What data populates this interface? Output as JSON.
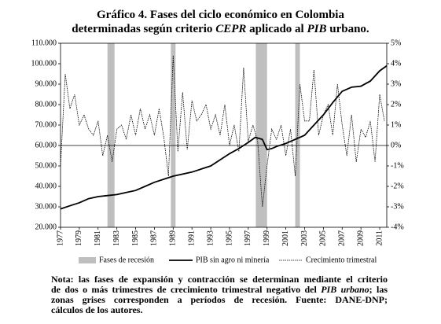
{
  "chart_data": {
    "type": "line",
    "title": [
      [
        "Gráfico 4. Fases del ciclo económico en Colombia"
      ],
      [
        "determinadas según criterio ",
        "CEPR",
        " aplicado al ",
        "PIB",
        " urbano."
      ]
    ],
    "title_italic": [
      [
        false
      ],
      [
        false,
        true,
        false,
        true,
        false
      ]
    ],
    "xlim": [
      1977,
      2011.75
    ],
    "xticks": [
      1977,
      1979,
      1981,
      1983,
      1985,
      1987,
      1989,
      1991,
      1993,
      1995,
      1997,
      1999,
      2001,
      2003,
      2005,
      2007,
      2009,
      2011
    ],
    "ylim": [
      20000,
      110000
    ],
    "yticks": [
      {
        "value": 20000,
        "label": "20.000"
      },
      {
        "value": 30000,
        "label": "30.000"
      },
      {
        "value": 40000,
        "label": "40.000"
      },
      {
        "value": 50000,
        "label": "50.000"
      },
      {
        "value": 60000,
        "label": "60.000"
      },
      {
        "value": 70000,
        "label": "70.000"
      },
      {
        "value": 80000,
        "label": "80.000"
      },
      {
        "value": 90000,
        "label": "90.000"
      },
      {
        "value": 100000,
        "label": "100.000"
      },
      {
        "value": 110000,
        "label": "110.000"
      }
    ],
    "y2lim": [
      -4,
      5
    ],
    "y2ticks": [
      {
        "value": -4,
        "label": "-4%"
      },
      {
        "value": -3,
        "label": "-3%"
      },
      {
        "value": -2,
        "label": "-2%"
      },
      {
        "value": -1,
        "label": "-1%"
      },
      {
        "value": 0,
        "label": "0%"
      },
      {
        "value": 1,
        "label": "1%"
      },
      {
        "value": 2,
        "label": "2%"
      },
      {
        "value": 3,
        "label": "3%"
      },
      {
        "value": 4,
        "label": "4%"
      },
      {
        "value": 5,
        "label": "5%"
      }
    ],
    "reference_line": {
      "axis": "y2",
      "value": 0
    },
    "recessions": {
      "name": "Fases de recesión",
      "color": "#bfbfbf",
      "spans": [
        [
          1982.0,
          1982.75
        ],
        [
          1988.75,
          1989.25
        ],
        [
          1997.8,
          1999.0
        ],
        [
          2002.0,
          2002.5
        ]
      ]
    },
    "series": [
      {
        "name": "PIB sin agro ni minería",
        "color": "#000000",
        "style": "solid",
        "x": [
          1977,
          1978,
          1979,
          1980,
          1981,
          1982,
          1983,
          1984,
          1985,
          1986,
          1987,
          1988,
          1989,
          1990,
          1991,
          1992,
          1993,
          1994,
          1995,
          1996,
          1997,
          1997.75,
          1998.5,
          1999,
          1999.5,
          2000,
          2001,
          2002,
          2003,
          2004,
          2005,
          2006,
          2007,
          2008,
          2009,
          2010,
          2011,
          2011.75
        ],
        "values": [
          29000,
          30500,
          32000,
          34000,
          35000,
          35500,
          36000,
          37000,
          38000,
          40000,
          42000,
          43500,
          45000,
          46000,
          47000,
          48500,
          50000,
          53000,
          56000,
          58500,
          61500,
          64000,
          63000,
          58000,
          58500,
          59500,
          61000,
          63000,
          65000,
          70000,
          75000,
          81000,
          86500,
          88500,
          89000,
          91500,
          96500,
          99000
        ]
      },
      {
        "name": "Crecimiento trimestral",
        "color": "#000000",
        "style": "dotted",
        "axis": "y2",
        "x": [
          1977,
          1977.5,
          1978,
          1978.5,
          1979,
          1979.5,
          1980,
          1980.5,
          1981,
          1981.5,
          1982,
          1982.5,
          1983,
          1983.5,
          1984,
          1984.5,
          1985,
          1985.5,
          1986,
          1986.5,
          1987,
          1987.5,
          1988,
          1988.5,
          1989,
          1989.5,
          1990,
          1990.5,
          1991,
          1991.5,
          1992,
          1992.5,
          1993,
          1993.5,
          1994,
          1994.5,
          1995,
          1995.5,
          1996,
          1996.5,
          1997,
          1997.5,
          1998,
          1998.5,
          1999,
          1999.5,
          2000,
          2000.5,
          2001,
          2001.5,
          2002,
          2002.5,
          2003,
          2003.5,
          2004,
          2004.5,
          2005,
          2005.5,
          2006,
          2006.5,
          2007,
          2007.5,
          2008,
          2008.5,
          2009,
          2009.5,
          2010,
          2010.5,
          2011,
          2011.5
        ],
        "values": [
          -1.0,
          3.5,
          1.8,
          2.5,
          1.0,
          1.5,
          0.8,
          0.5,
          1.2,
          -0.5,
          0.5,
          -0.8,
          0.8,
          1.0,
          0.3,
          1.5,
          0.5,
          1.8,
          0.8,
          1.5,
          0.5,
          1.8,
          0.4,
          -1.5,
          4.4,
          -0.3,
          2.6,
          -0.2,
          2.2,
          1.2,
          1.5,
          2.0,
          0.8,
          1.5,
          0.5,
          2.0,
          0.0,
          1.0,
          -0.3,
          3.8,
          0.2,
          1.0,
          0.2,
          -3.0,
          -1.0,
          0.8,
          0.3,
          1.0,
          -0.5,
          0.8,
          -1.5,
          3.0,
          1.2,
          1.2,
          3.7,
          0.5,
          1.5,
          2.0,
          0.5,
          3.0,
          1.0,
          -0.5,
          1.5,
          -0.8,
          0.8,
          0.4,
          1.2,
          -0.8,
          2.5,
          1.2
        ]
      }
    ],
    "note": [
      [
        "Nota: las fases de expansión y contracción se determinan mediante el criterio"
      ],
      [
        "de dos o más trimestres de crecimiento trimestral negativo del ",
        "PIB urbano",
        "; las"
      ],
      [
        "zonas grises corresponden a períodos de recesión. Fuente: DANE-DNP;"
      ],
      [
        "cálculos de los autores."
      ]
    ],
    "note_italic": [
      [
        false
      ],
      [
        false,
        true,
        false
      ],
      [
        false
      ],
      [
        false
      ]
    ]
  }
}
